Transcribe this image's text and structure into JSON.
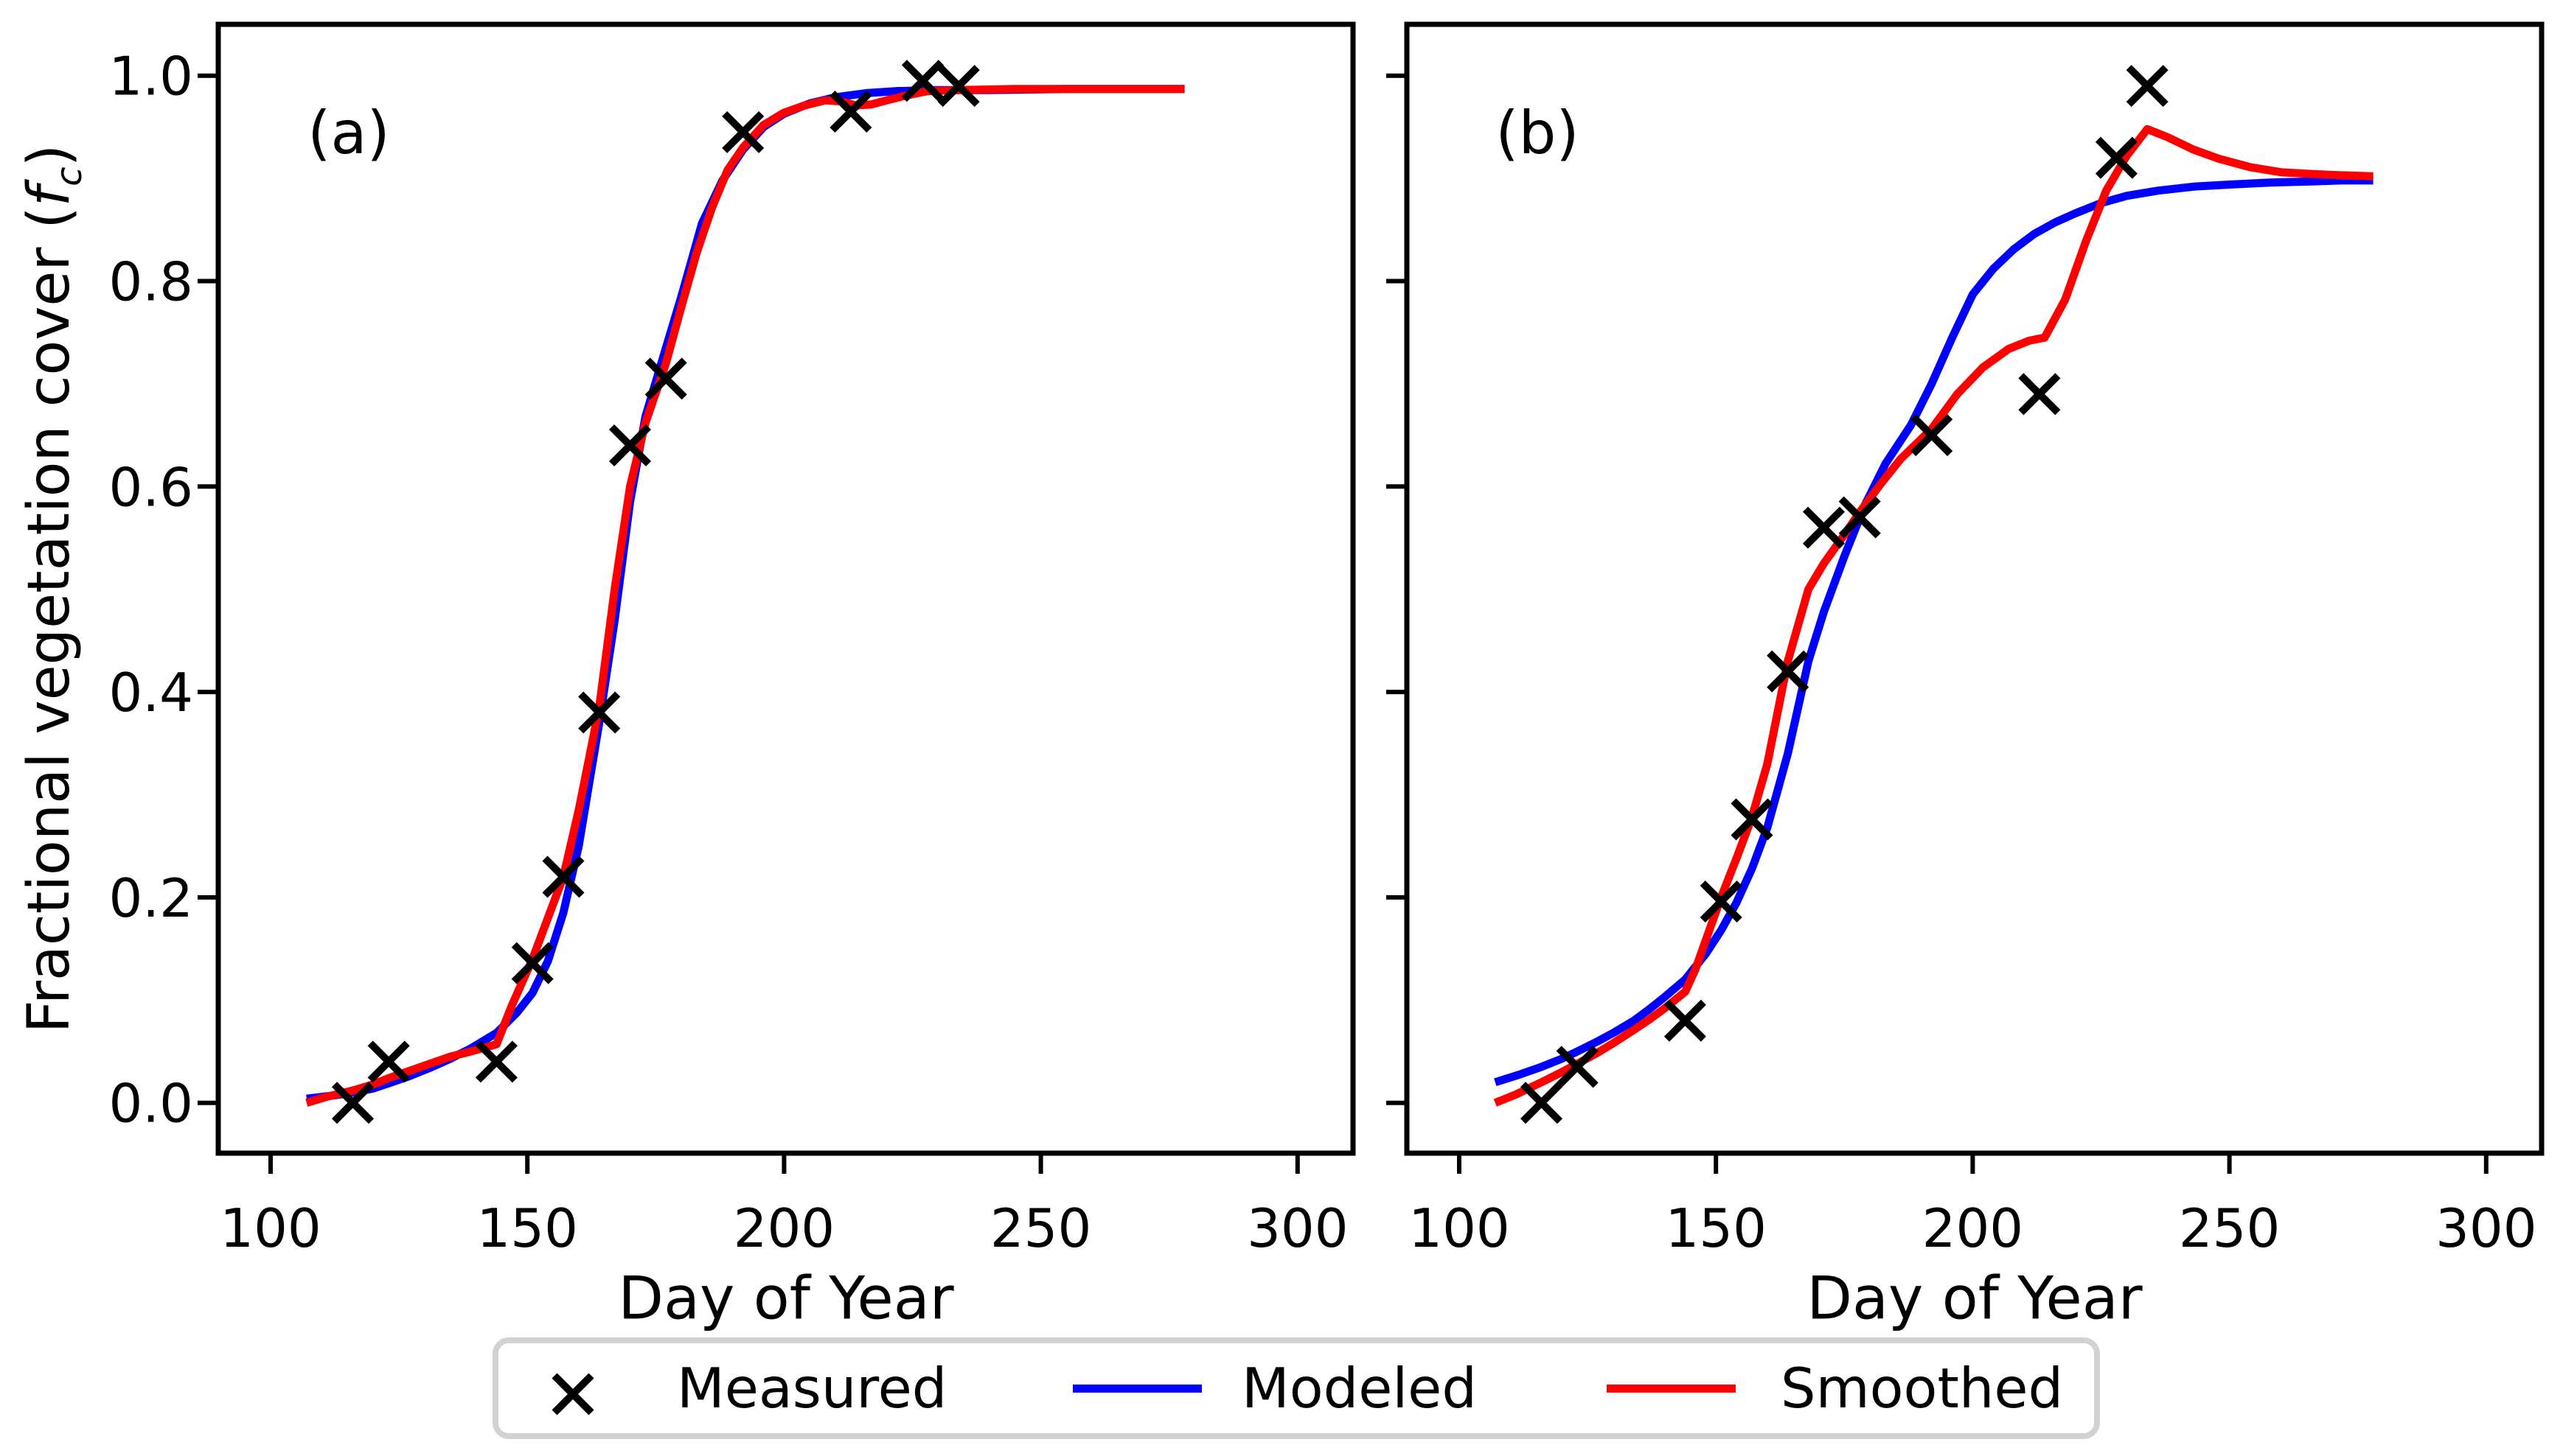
{
  "figure": {
    "background": "#ffffff",
    "ylabel": {
      "prefix": "Fractional vegetation cover (",
      "var": "f",
      "sub": "c",
      "suffix": ")"
    }
  },
  "legend": {
    "border_color": "#d2d2d2",
    "items": [
      {
        "label": "Measured",
        "marker": "x",
        "color": "#000000"
      },
      {
        "label": "Modeled",
        "marker": "line",
        "color": "#0000ff"
      },
      {
        "label": "Smoothed",
        "marker": "line",
        "color": "#ff0000"
      }
    ]
  },
  "chart_data": [
    {
      "type": "line",
      "panel_label": "(a)",
      "xlabel": "Day of Year",
      "ylabel": "Fractional vegetation cover (fc)",
      "xlim": [
        89.8,
        310.8
      ],
      "ylim": [
        -0.049,
        1.05
      ],
      "xticks": [
        100,
        150,
        200,
        250,
        300
      ],
      "xtick_labels": [
        "100",
        "150",
        "200",
        "250",
        "300"
      ],
      "yticks": [
        0.0,
        0.2,
        0.4,
        0.6,
        0.8,
        1.0
      ],
      "ytick_labels": [
        "0.0",
        "0.2",
        "0.4",
        "0.6",
        "0.8",
        "1.0"
      ],
      "grid": false,
      "series": [
        {
          "name": "Measured",
          "kind": "scatter",
          "marker": "x",
          "color": "#000000",
          "x": [
            116,
            123,
            144,
            151,
            157,
            164,
            170,
            177,
            192,
            213,
            227,
            234
          ],
          "y": [
            0.0,
            0.04,
            0.04,
            0.136,
            0.22,
            0.38,
            0.64,
            0.705,
            0.945,
            0.965,
            0.995,
            0.99
          ]
        },
        {
          "name": "Modeled",
          "kind": "line",
          "color": "#0000ff",
          "x": [
            107,
            112,
            116,
            120,
            123,
            127,
            131,
            135,
            139,
            144,
            148,
            151,
            154,
            157,
            160,
            164,
            167,
            170,
            173,
            177,
            180,
            184,
            188,
            192,
            196,
            200,
            205,
            210,
            216,
            222,
            230,
            240,
            255,
            278
          ],
          "y": [
            0.004,
            0.007,
            0.01,
            0.014,
            0.019,
            0.026,
            0.034,
            0.043,
            0.053,
            0.068,
            0.088,
            0.107,
            0.138,
            0.185,
            0.25,
            0.37,
            0.47,
            0.585,
            0.668,
            0.735,
            0.785,
            0.856,
            0.898,
            0.928,
            0.95,
            0.963,
            0.973,
            0.979,
            0.983,
            0.985,
            0.986,
            0.986,
            0.987,
            0.987
          ]
        },
        {
          "name": "Smoothed",
          "kind": "line",
          "color": "#ff0000",
          "x": [
            107,
            111,
            116,
            120,
            123,
            127,
            131,
            135,
            139,
            144,
            147,
            151,
            154,
            157,
            160,
            164,
            167,
            170,
            173,
            177,
            180,
            183,
            186,
            189,
            192,
            196,
            200,
            204,
            208,
            211,
            214,
            217,
            220,
            224,
            228,
            234,
            245,
            260,
            278
          ],
          "y": [
            0.0,
            0.006,
            0.012,
            0.018,
            0.024,
            0.031,
            0.038,
            0.045,
            0.05,
            0.057,
            0.095,
            0.14,
            0.18,
            0.22,
            0.285,
            0.385,
            0.5,
            0.6,
            0.662,
            0.72,
            0.775,
            0.828,
            0.872,
            0.908,
            0.93,
            0.952,
            0.964,
            0.971,
            0.976,
            0.975,
            0.971,
            0.972,
            0.976,
            0.981,
            0.985,
            0.986,
            0.987,
            0.987,
            0.987
          ]
        }
      ]
    },
    {
      "type": "line",
      "panel_label": "(b)",
      "xlabel": "Day of Year",
      "ylabel": "Fractional vegetation cover (fc)",
      "xlim": [
        89.8,
        310.8
      ],
      "ylim": [
        -0.049,
        1.05
      ],
      "xticks": [
        100,
        150,
        200,
        250,
        300
      ],
      "xtick_labels": [
        "100",
        "150",
        "200",
        "250",
        "300"
      ],
      "yticks": [
        0.0,
        0.2,
        0.4,
        0.6,
        0.8,
        1.0
      ],
      "ytick_labels": [],
      "grid": false,
      "series": [
        {
          "name": "Measured",
          "kind": "scatter",
          "marker": "x",
          "color": "#000000",
          "x": [
            116,
            123,
            144,
            151,
            157,
            164,
            171,
            178,
            192,
            213,
            228,
            234
          ],
          "y": [
            0.0,
            0.035,
            0.08,
            0.196,
            0.276,
            0.42,
            0.56,
            0.57,
            0.65,
            0.69,
            0.92,
            0.99
          ]
        },
        {
          "name": "Modeled",
          "kind": "line",
          "color": "#0000ff",
          "x": [
            107,
            112,
            116,
            120,
            123,
            127,
            130,
            134,
            137,
            140,
            144,
            148,
            151,
            154,
            157,
            160,
            164,
            168,
            171,
            175,
            179,
            183,
            188,
            192,
            196,
            200,
            204,
            208,
            212,
            216,
            220,
            225,
            230,
            236,
            243,
            250,
            258,
            266,
            272,
            278
          ],
          "y": [
            0.02,
            0.028,
            0.035,
            0.043,
            0.05,
            0.06,
            0.068,
            0.08,
            0.091,
            0.103,
            0.12,
            0.145,
            0.168,
            0.195,
            0.228,
            0.268,
            0.34,
            0.43,
            0.478,
            0.532,
            0.582,
            0.622,
            0.66,
            0.7,
            0.745,
            0.787,
            0.812,
            0.831,
            0.846,
            0.857,
            0.866,
            0.876,
            0.883,
            0.888,
            0.892,
            0.894,
            0.896,
            0.897,
            0.898,
            0.898
          ]
        },
        {
          "name": "Smoothed",
          "kind": "line",
          "color": "#ff0000",
          "x": [
            107,
            111,
            116,
            120,
            123,
            127,
            130,
            134,
            137,
            140,
            144,
            146,
            148,
            151,
            154,
            157,
            160,
            164,
            168,
            171,
            175,
            178,
            182,
            186,
            192,
            197,
            202,
            207,
            211,
            214,
            218,
            222,
            226,
            230,
            234,
            238,
            243,
            248,
            254,
            260,
            267,
            272,
            278
          ],
          "y": [
            0.0,
            0.008,
            0.02,
            0.03,
            0.038,
            0.049,
            0.058,
            0.071,
            0.081,
            0.092,
            0.108,
            0.13,
            0.158,
            0.2,
            0.238,
            0.278,
            0.33,
            0.43,
            0.5,
            0.525,
            0.553,
            0.575,
            0.602,
            0.627,
            0.656,
            0.69,
            0.716,
            0.734,
            0.742,
            0.745,
            0.782,
            0.838,
            0.888,
            0.922,
            0.948,
            0.94,
            0.928,
            0.919,
            0.911,
            0.906,
            0.904,
            0.903,
            0.902
          ]
        }
      ]
    }
  ]
}
